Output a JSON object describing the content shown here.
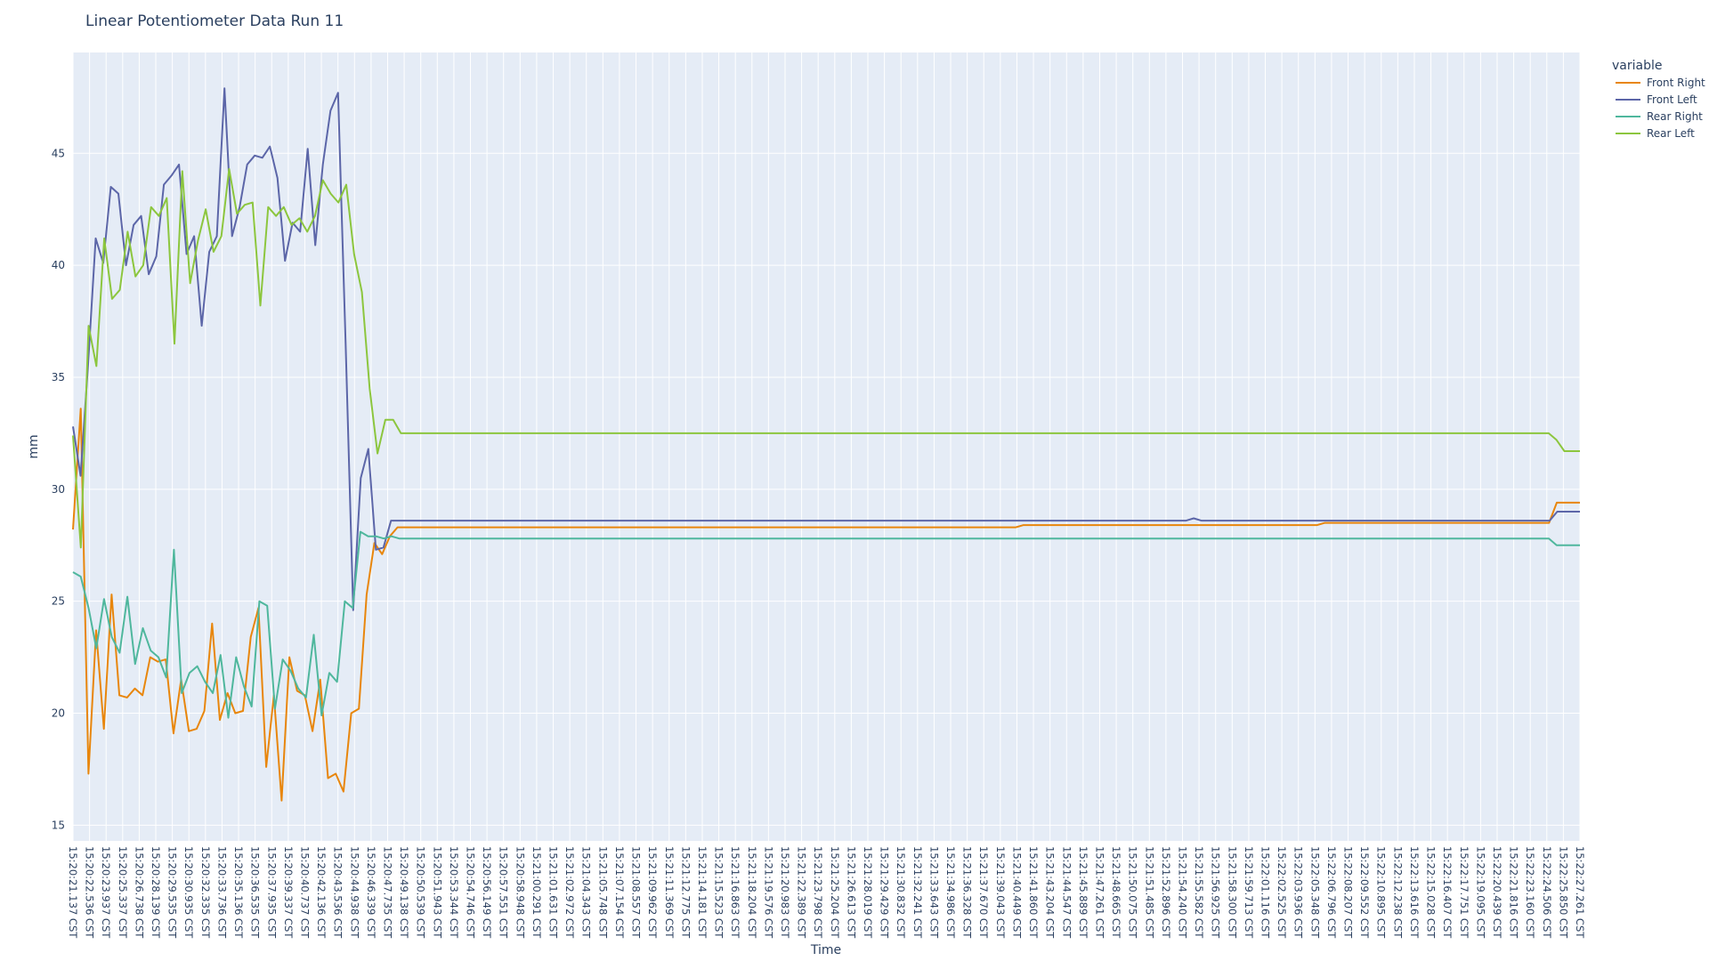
{
  "chart_data": {
    "type": "line",
    "title": "Linear Potentiometer Data Run 11",
    "xlabel": "Time",
    "ylabel": "mm",
    "ylim": [
      14.3,
      49.5
    ],
    "yticks": [
      15,
      20,
      25,
      30,
      35,
      40,
      45
    ],
    "grid": true,
    "legend": {
      "title": "variable",
      "placement": "right"
    },
    "x_tick_labels": [
      "15:20:21.137 CST",
      "15:20:22.536 CST",
      "15:20:23.937 CST",
      "15:20:25.337 CST",
      "15:20:26.738 CST",
      "15:20:28.139 CST",
      "15:20:29.535 CST",
      "15:20:30.935 CST",
      "15:20:32.335 CST",
      "15:20:33.736 CST",
      "15:20:35.136 CST",
      "15:20:36.535 CST",
      "15:20:37.935 CST",
      "15:20:39.337 CST",
      "15:20:40.737 CST",
      "15:20:42.136 CST",
      "15:20:43.536 CST",
      "15:20:44.938 CST",
      "15:20:46.339 CST",
      "15:20:47.735 CST",
      "15:20:49.138 CST",
      "15:20:50.539 CST",
      "15:20:51.943 CST",
      "15:20:53.344 CST",
      "15:20:54.746 CST",
      "15:20:56.149 CST",
      "15:20:57.551 CST",
      "15:20:58.948 CST",
      "15:21:00.291 CST",
      "15:21:01.631 CST",
      "15:21:02.972 CST",
      "15:21:04.343 CST",
      "15:21:05.748 CST",
      "15:21:07.154 CST",
      "15:21:08.557 CST",
      "15:21:09.962 CST",
      "15:21:11.369 CST",
      "15:21:12.775 CST",
      "15:21:14.181 CST",
      "15:21:15.523 CST",
      "15:21:16.863 CST",
      "15:21:18.204 CST",
      "15:21:19.576 CST",
      "15:21:20.983 CST",
      "15:21:22.389 CST",
      "15:21:23.798 CST",
      "15:21:25.204 CST",
      "15:21:26.613 CST",
      "15:21:28.019 CST",
      "15:21:29.429 CST",
      "15:21:30.832 CST",
      "15:21:32.241 CST",
      "15:21:33.643 CST",
      "15:21:34.986 CST",
      "15:21:36.328 CST",
      "15:21:37.670 CST",
      "15:21:39.043 CST",
      "15:21:40.449 CST",
      "15:21:41.860 CST",
      "15:21:43.204 CST",
      "15:21:44.547 CST",
      "15:21:45.889 CST",
      "15:21:47.261 CST",
      "15:21:48.665 CST",
      "15:21:50.075 CST",
      "15:21:51.485 CST",
      "15:21:52.896 CST",
      "15:21:54.240 CST",
      "15:21:55.582 CST",
      "15:21:56.925 CST",
      "15:21:58.300 CST",
      "15:21:59.713 CST",
      "15:22:01.116 CST",
      "15:22:02.525 CST",
      "15:22:03.936 CST",
      "15:22:05.348 CST",
      "15:22:06.796 CST",
      "15:22:08.207 CST",
      "15:22:09.552 CST",
      "15:22:10.895 CST",
      "15:22:12.238 CST",
      "15:22:13.616 CST",
      "15:22:15.028 CST",
      "15:22:16.407 CST",
      "15:22:17.751 CST",
      "15:22:19.095 CST",
      "15:22:20.439 CST",
      "15:22:21.816 CST",
      "15:22:23.160 CST",
      "15:22:24.506 CST",
      "15:22:25.850 CST",
      "15:22:27.261 CST"
    ],
    "series": [
      {
        "name": "Front Right",
        "color": "#e8860c",
        "values": [
          28.2,
          33.6,
          17.3,
          23.7,
          19.3,
          25.3,
          20.8,
          20.7,
          21.1,
          20.8,
          22.5,
          22.3,
          22.4,
          19.1,
          21.5,
          19.2,
          19.3,
          20.1,
          24.0,
          19.7,
          20.9,
          20.0,
          20.1,
          23.4,
          24.7,
          17.6,
          20.8,
          16.1,
          22.5,
          21.0,
          20.8,
          19.2,
          21.5,
          17.1,
          17.3,
          16.5,
          20.0,
          20.2,
          25.3,
          27.6,
          27.1,
          27.9,
          28.3,
          28.3,
          28.3,
          28.3,
          28.3,
          28.3,
          28.3,
          28.3,
          28.3,
          28.3,
          28.3,
          28.3,
          28.3,
          28.3,
          28.3,
          28.3,
          28.3,
          28.3,
          28.3,
          28.3,
          28.3,
          28.3,
          28.3,
          28.3,
          28.3,
          28.3,
          28.3,
          28.3,
          28.3,
          28.3,
          28.3,
          28.3,
          28.3,
          28.3,
          28.3,
          28.3,
          28.3,
          28.3,
          28.3,
          28.3,
          28.3,
          28.3,
          28.3,
          28.3,
          28.3,
          28.3,
          28.3,
          28.3,
          28.3,
          28.3,
          28.3,
          28.3,
          28.3,
          28.3,
          28.3,
          28.3,
          28.3,
          28.3,
          28.3,
          28.3,
          28.3,
          28.3,
          28.3,
          28.3,
          28.3,
          28.3,
          28.3,
          28.3,
          28.3,
          28.3,
          28.3,
          28.3,
          28.3,
          28.3,
          28.3,
          28.3,
          28.3,
          28.3,
          28.3,
          28.3,
          28.3,
          28.4,
          28.4,
          28.4,
          28.4,
          28.4,
          28.4,
          28.4,
          28.4,
          28.4,
          28.4,
          28.4,
          28.4,
          28.4,
          28.4,
          28.4,
          28.4,
          28.4,
          28.4,
          28.4,
          28.4,
          28.4,
          28.4,
          28.4,
          28.4,
          28.4,
          28.4,
          28.4,
          28.4,
          28.4,
          28.4,
          28.4,
          28.4,
          28.4,
          28.4,
          28.4,
          28.4,
          28.4,
          28.4,
          28.4,
          28.5,
          28.5,
          28.5,
          28.5,
          28.5,
          28.5,
          28.5,
          28.5,
          28.5,
          28.5,
          28.5,
          28.5,
          28.5,
          28.5,
          28.5,
          28.5,
          28.5,
          28.5,
          28.5,
          28.5,
          28.5,
          28.5,
          28.5,
          28.5,
          28.5,
          28.5,
          28.5,
          28.5,
          28.5,
          28.5,
          29.4,
          29.4,
          29.4,
          29.4
        ]
      },
      {
        "name": "Front Left",
        "color": "#5c66a8",
        "values": [
          32.8,
          30.6,
          35.6,
          41.2,
          40.1,
          43.5,
          43.2,
          40.0,
          41.8,
          42.2,
          39.6,
          40.4,
          43.6,
          44.0,
          44.5,
          40.5,
          41.3,
          37.3,
          40.6,
          41.3,
          47.9,
          41.3,
          42.6,
          44.5,
          44.9,
          44.8,
          45.3,
          43.9,
          40.2,
          41.9,
          41.5,
          45.2,
          40.9,
          44.5,
          46.9,
          47.7,
          36.5,
          24.6,
          30.5,
          31.8,
          27.3,
          27.4,
          28.6,
          28.6,
          28.6,
          28.6,
          28.6,
          28.6,
          28.6,
          28.6,
          28.6,
          28.6,
          28.6,
          28.6,
          28.6,
          28.6,
          28.6,
          28.6,
          28.6,
          28.6,
          28.6,
          28.6,
          28.6,
          28.6,
          28.6,
          28.6,
          28.6,
          28.6,
          28.6,
          28.6,
          28.6,
          28.6,
          28.6,
          28.6,
          28.6,
          28.6,
          28.6,
          28.6,
          28.6,
          28.6,
          28.6,
          28.6,
          28.6,
          28.6,
          28.6,
          28.6,
          28.6,
          28.6,
          28.6,
          28.6,
          28.6,
          28.6,
          28.6,
          28.6,
          28.6,
          28.6,
          28.6,
          28.6,
          28.6,
          28.6,
          28.6,
          28.6,
          28.6,
          28.6,
          28.6,
          28.6,
          28.6,
          28.6,
          28.6,
          28.6,
          28.6,
          28.6,
          28.6,
          28.6,
          28.6,
          28.6,
          28.6,
          28.6,
          28.6,
          28.6,
          28.6,
          28.6,
          28.6,
          28.6,
          28.6,
          28.6,
          28.6,
          28.6,
          28.6,
          28.6,
          28.6,
          28.6,
          28.6,
          28.6,
          28.6,
          28.6,
          28.6,
          28.6,
          28.6,
          28.6,
          28.6,
          28.6,
          28.6,
          28.6,
          28.6,
          28.6,
          28.6,
          28.6,
          28.7,
          28.6,
          28.6,
          28.6,
          28.6,
          28.6,
          28.6,
          28.6,
          28.6,
          28.6,
          28.6,
          28.6,
          28.6,
          28.6,
          28.6,
          28.6,
          28.6,
          28.6,
          28.6,
          28.6,
          28.6,
          28.6,
          28.6,
          28.6,
          28.6,
          28.6,
          28.6,
          28.6,
          28.6,
          28.6,
          28.6,
          28.6,
          28.6,
          28.6,
          28.6,
          28.6,
          28.6,
          28.6,
          28.6,
          28.6,
          28.6,
          28.6,
          28.6,
          28.6,
          28.6,
          28.6,
          28.6,
          28.6,
          29.0,
          29.0,
          29.0,
          29.0
        ]
      },
      {
        "name": "Rear Right",
        "color": "#4fb79d",
        "values": [
          26.3,
          26.1,
          24.7,
          22.9,
          25.1,
          23.4,
          22.7,
          25.2,
          22.2,
          23.8,
          22.8,
          22.5,
          21.6,
          27.3,
          20.9,
          21.8,
          22.1,
          21.4,
          20.9,
          22.6,
          19.8,
          22.5,
          21.2,
          20.3,
          25.0,
          24.8,
          20.2,
          22.4,
          21.9,
          21.1,
          20.7,
          23.5,
          19.9,
          21.8,
          21.4,
          25.0,
          24.7,
          28.1,
          27.9,
          27.9,
          27.8,
          27.9,
          27.8,
          27.8,
          27.8,
          27.8,
          27.8,
          27.8,
          27.8,
          27.8,
          27.8,
          27.8,
          27.8,
          27.8,
          27.8,
          27.8,
          27.8,
          27.8,
          27.8,
          27.8,
          27.8,
          27.8,
          27.8,
          27.8,
          27.8,
          27.8,
          27.8,
          27.8,
          27.8,
          27.8,
          27.8,
          27.8,
          27.8,
          27.8,
          27.8,
          27.8,
          27.8,
          27.8,
          27.8,
          27.8,
          27.8,
          27.8,
          27.8,
          27.8,
          27.8,
          27.8,
          27.8,
          27.8,
          27.8,
          27.8,
          27.8,
          27.8,
          27.8,
          27.8,
          27.8,
          27.8,
          27.8,
          27.8,
          27.8,
          27.8,
          27.8,
          27.8,
          27.8,
          27.8,
          27.8,
          27.8,
          27.8,
          27.8,
          27.8,
          27.8,
          27.8,
          27.8,
          27.8,
          27.8,
          27.8,
          27.8,
          27.8,
          27.8,
          27.8,
          27.8,
          27.8,
          27.8,
          27.8,
          27.8,
          27.8,
          27.8,
          27.8,
          27.8,
          27.8,
          27.8,
          27.8,
          27.8,
          27.8,
          27.8,
          27.8,
          27.8,
          27.8,
          27.8,
          27.8,
          27.8,
          27.8,
          27.8,
          27.8,
          27.8,
          27.8,
          27.8,
          27.8,
          27.8,
          27.8,
          27.8,
          27.8,
          27.8,
          27.8,
          27.8,
          27.8,
          27.8,
          27.8,
          27.8,
          27.8,
          27.8,
          27.8,
          27.8,
          27.8,
          27.8,
          27.8,
          27.8,
          27.8,
          27.8,
          27.8,
          27.8,
          27.8,
          27.8,
          27.8,
          27.8,
          27.8,
          27.8,
          27.8,
          27.8,
          27.8,
          27.8,
          27.8,
          27.8,
          27.8,
          27.8,
          27.8,
          27.8,
          27.8,
          27.8,
          27.8,
          27.8,
          27.8,
          27.5,
          27.5,
          27.5,
          27.5
        ]
      },
      {
        "name": "Rear Left",
        "color": "#8cc63e",
        "values": [
          32.4,
          27.4,
          37.3,
          35.5,
          41.2,
          38.5,
          38.9,
          41.5,
          39.5,
          40.0,
          42.6,
          42.2,
          43.0,
          36.5,
          44.2,
          39.2,
          41.1,
          42.5,
          40.6,
          41.3,
          44.3,
          42.3,
          42.7,
          42.8,
          38.2,
          42.6,
          42.2,
          42.6,
          41.8,
          42.1,
          41.5,
          42.2,
          43.8,
          43.2,
          42.8,
          43.6,
          40.5,
          38.8,
          34.5,
          31.6,
          33.1,
          33.1,
          32.5,
          32.5,
          32.5,
          32.5,
          32.5,
          32.5,
          32.5,
          32.5,
          32.5,
          32.5,
          32.5,
          32.5,
          32.5,
          32.5,
          32.5,
          32.5,
          32.5,
          32.5,
          32.5,
          32.5,
          32.5,
          32.5,
          32.5,
          32.5,
          32.5,
          32.5,
          32.5,
          32.5,
          32.5,
          32.5,
          32.5,
          32.5,
          32.5,
          32.5,
          32.5,
          32.5,
          32.5,
          32.5,
          32.5,
          32.5,
          32.5,
          32.5,
          32.5,
          32.5,
          32.5,
          32.5,
          32.5,
          32.5,
          32.5,
          32.5,
          32.5,
          32.5,
          32.5,
          32.5,
          32.5,
          32.5,
          32.5,
          32.5,
          32.5,
          32.5,
          32.5,
          32.5,
          32.5,
          32.5,
          32.5,
          32.5,
          32.5,
          32.5,
          32.5,
          32.5,
          32.5,
          32.5,
          32.5,
          32.5,
          32.5,
          32.5,
          32.5,
          32.5,
          32.5,
          32.5,
          32.5,
          32.5,
          32.5,
          32.5,
          32.5,
          32.5,
          32.5,
          32.5,
          32.5,
          32.5,
          32.5,
          32.5,
          32.5,
          32.5,
          32.5,
          32.5,
          32.5,
          32.5,
          32.5,
          32.5,
          32.5,
          32.5,
          32.5,
          32.5,
          32.5,
          32.5,
          32.5,
          32.5,
          32.5,
          32.5,
          32.5,
          32.5,
          32.5,
          32.5,
          32.5,
          32.5,
          32.5,
          32.5,
          32.5,
          32.5,
          32.5,
          32.5,
          32.5,
          32.5,
          32.5,
          32.5,
          32.5,
          32.5,
          32.5,
          32.5,
          32.5,
          32.5,
          32.5,
          32.5,
          32.5,
          32.5,
          32.5,
          32.5,
          32.5,
          32.5,
          32.5,
          32.5,
          32.5,
          32.5,
          32.5,
          32.5,
          32.5,
          32.5,
          32.2,
          31.7,
          31.7,
          31.7
        ]
      }
    ]
  }
}
